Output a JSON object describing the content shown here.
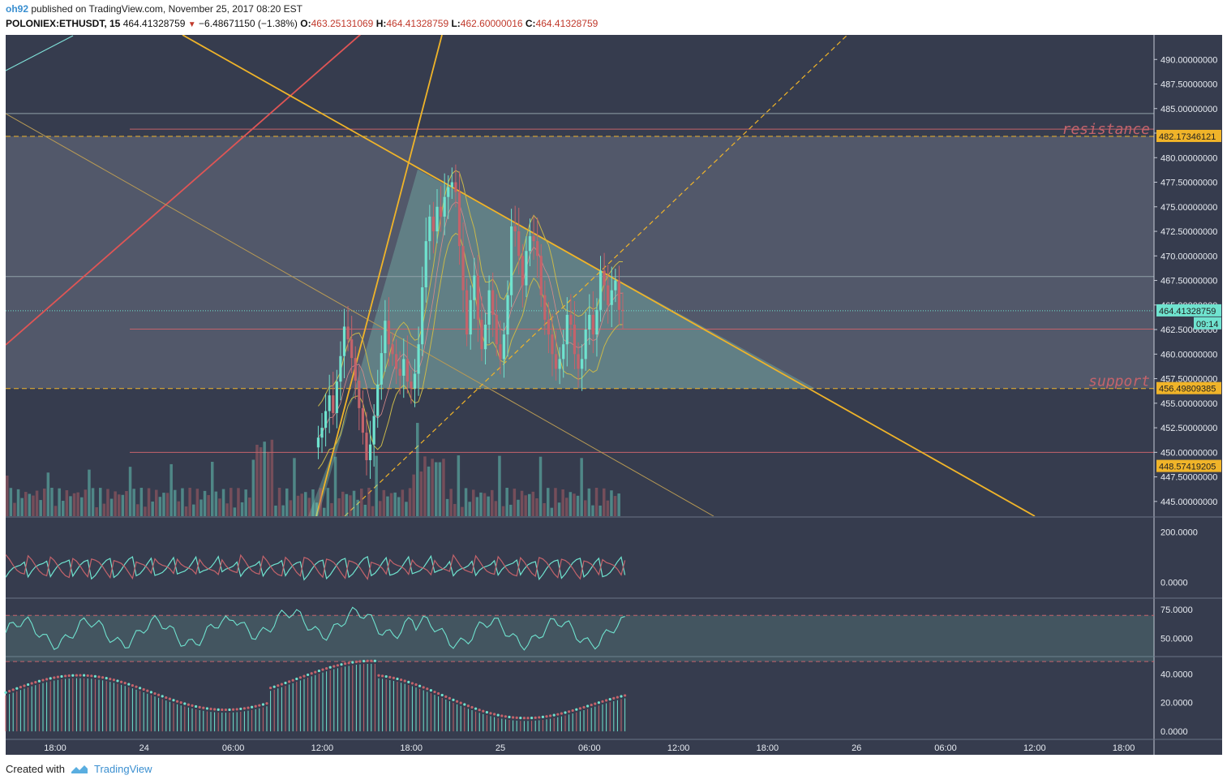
{
  "header": {
    "user": "oh92",
    "published": "published on TradingView.com, November 25, 2017 08:20 EST",
    "symbol": "POLONIEX:ETHUSDT, 15",
    "last": "464.41328759",
    "change": "−6.48671150 (−1.38%)",
    "open_label": "O:",
    "open": "463.25131069",
    "high_label": "H:",
    "high": "464.41328759",
    "low_label": "L:",
    "low": "462.60000016",
    "close_label": "C:",
    "close": "464.41328759"
  },
  "footer": {
    "created_with": "Created with",
    "brand": "TradingView"
  },
  "colors": {
    "panel_bg": "#363c4e",
    "up": "#6fe3cf",
    "down": "#c4636b",
    "gold": "#f0b429",
    "red_line": "#e05555",
    "resistance_text": "#c4636b"
  },
  "chart_data": {
    "type": "candlestick",
    "symbol": "POLONIEX:ETHUSDT",
    "interval": "15",
    "ylim": [
      443.5,
      492.5
    ],
    "y_ticks": [
      "490.00000000",
      "487.50000000",
      "485.00000000",
      "482.50000000",
      "480.00000000",
      "477.50000000",
      "475.00000000",
      "472.50000000",
      "470.00000000",
      "467.50000000",
      "465.00000000",
      "462.50000000",
      "460.00000000",
      "457.50000000",
      "455.00000000",
      "452.50000000",
      "450.00000000",
      "447.50000000",
      "445.00000000"
    ],
    "x_ticks": [
      "18:00",
      "24",
      "06:00",
      "12:00",
      "18:00",
      "25",
      "06:00",
      "12:00",
      "18:00",
      "26",
      "06:00",
      "12:00",
      "18:00"
    ],
    "annotations": [
      {
        "text": "resistance",
        "price": 482.17346121
      },
      {
        "text": "support",
        "price": 456.49809385
      }
    ],
    "price_labels": [
      {
        "text": "482.17346121",
        "price": 482.17346121,
        "color": "#f0b429",
        "text_color": "#222"
      },
      {
        "text": "464.41328759",
        "price": 464.41328759,
        "color": "#6fe3cf",
        "text_color": "#222"
      },
      {
        "text": "09:14",
        "price": 463.1,
        "color": "#6fe3cf",
        "text_color": "#222"
      },
      {
        "text": "456.49809385",
        "price": 456.49809385,
        "color": "#f0b429",
        "text_color": "#222"
      },
      {
        "text": "448.57419205",
        "price": 448.57419205,
        "color": "#f0b429",
        "text_color": "#222"
      }
    ],
    "horizontal_lines": [
      {
        "price": 482.17346121,
        "style": "dashed",
        "color": "#f0b429"
      },
      {
        "price": 456.49809385,
        "style": "dashed",
        "color": "#f0b429"
      },
      {
        "price": 482.9,
        "style": "solid",
        "color": "#c4636b"
      },
      {
        "price": 462.55,
        "style": "solid",
        "color": "#c4636b"
      },
      {
        "price": 450.0,
        "style": "solid",
        "color": "#c4636b"
      },
      {
        "price": 484.5,
        "style": "solid",
        "color": "#8fa0a8"
      },
      {
        "price": 467.9,
        "style": "solid",
        "color": "#8fa0a8"
      },
      {
        "price": 464.41328759,
        "style": "dotted",
        "color": "#6fe3cf"
      }
    ],
    "close_series": [
      451.5,
      452.5,
      454.2,
      455.8,
      454.0,
      457.2,
      459.8,
      462.8,
      461.5,
      459.6,
      457.3,
      454.5,
      452.0,
      449.2,
      450.8,
      453.7,
      456.9,
      460.1,
      463.4,
      461.0,
      460.0,
      458.5,
      457.8,
      459.5,
      457.2,
      456.5,
      458.0,
      461.0,
      466.8,
      471.5,
      474.0,
      472.5,
      475.0,
      474.0,
      476.0,
      477.0,
      477.5,
      476.5,
      471.0,
      466.5,
      462.0,
      465.5,
      468.0,
      463.5,
      460.5,
      463.0,
      466.5,
      464.0,
      461.0,
      459.5,
      462.0,
      466.0,
      473.0,
      472.5,
      470.0,
      467.0,
      470.5,
      472.0,
      471.5,
      470.0,
      466.0,
      463.5,
      462.0,
      460.0,
      458.5,
      459.5,
      461.0,
      464.0,
      463.0,
      460.0,
      458.5,
      459.5,
      462.5,
      464.0,
      462.0,
      464.5,
      468.5,
      467.0,
      465.0,
      466.5,
      467.5,
      464.5,
      464.4
    ],
    "indicators": {
      "osc1": {
        "ylim": [
          -60,
          260
        ],
        "ticks": [
          "200.0000",
          "0.0000"
        ]
      },
      "rsi": {
        "ylim": [
          35,
          85
        ],
        "ticks": [
          "75.0000",
          "50.0000"
        ],
        "bands": [
          70,
          30
        ]
      },
      "osc3": {
        "ylim": [
          -5,
          52
        ],
        "ticks": [
          "40.0000",
          "20.0000",
          "0.0000"
        ]
      }
    }
  }
}
